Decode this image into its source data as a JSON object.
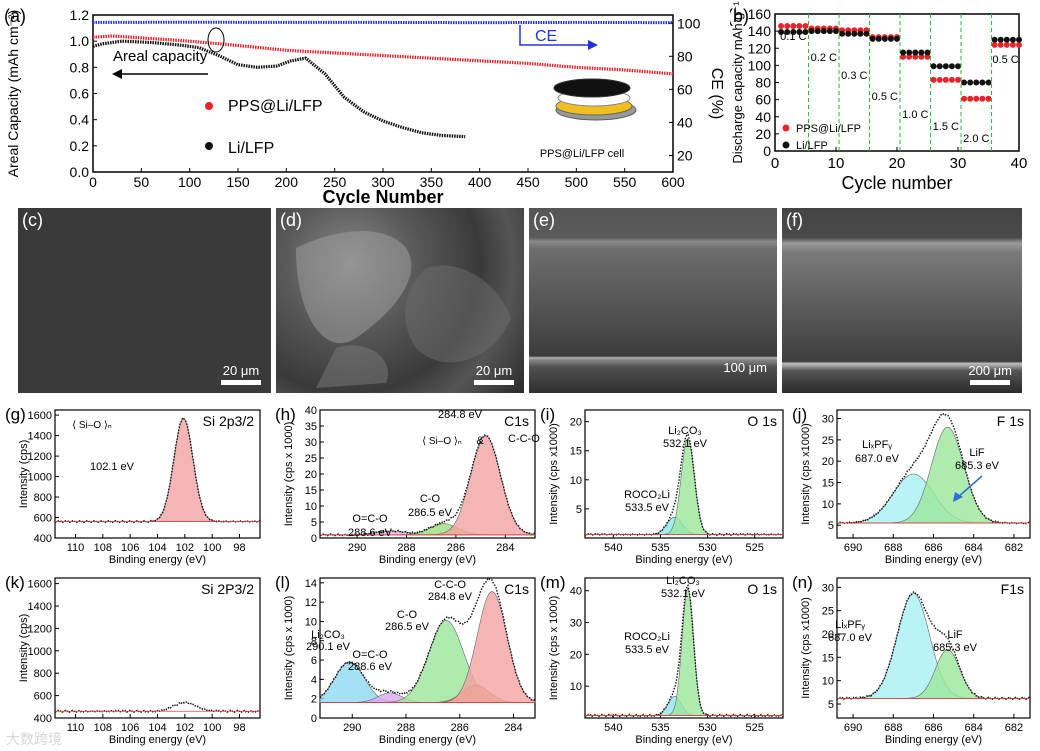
{
  "figure": {
    "watermark": "大数跨境"
  },
  "panel_a": {
    "label": "(a)",
    "chart_data": {
      "type": "line",
      "title": "",
      "xlabel": "Cycle Number",
      "ylabel": "Areal Capacity (mAh cm⁻²)",
      "y2label": "CE (%)",
      "xlim": [
        0,
        600
      ],
      "ylim": [
        0,
        1.2
      ],
      "y2lim": [
        10,
        105
      ],
      "xticks": [
        "0",
        "50",
        "100",
        "150",
        "200",
        "250",
        "300",
        "350",
        "400",
        "450",
        "500",
        "550",
        "600"
      ],
      "yticks": [
        "0.0",
        "0.2",
        "0.4",
        "0.6",
        "0.8",
        "1.0",
        "1.2"
      ],
      "y2ticks": [
        "20",
        "40",
        "60",
        "80",
        "100"
      ],
      "series": [
        {
          "name": "PPS@Li/LFP",
          "color": "#e8232a",
          "x": [
            0,
            20,
            40,
            60,
            80,
            100,
            130,
            160,
            200,
            250,
            300,
            350,
            400,
            450,
            500,
            550,
            600
          ],
          "y": [
            1.03,
            1.04,
            1.03,
            1.02,
            1.01,
            1.0,
            0.98,
            0.96,
            0.93,
            0.91,
            0.89,
            0.87,
            0.85,
            0.83,
            0.8,
            0.78,
            0.75
          ]
        },
        {
          "name": "Li/LFP",
          "color": "#111111",
          "x": [
            0,
            10,
            30,
            60,
            90,
            110,
            130,
            150,
            170,
            190,
            205,
            220,
            240,
            260,
            280,
            300,
            320,
            340,
            360,
            385
          ],
          "y": [
            0.96,
            0.98,
            1.0,
            0.99,
            0.97,
            0.95,
            0.89,
            0.82,
            0.8,
            0.81,
            0.85,
            0.87,
            0.75,
            0.57,
            0.46,
            0.39,
            0.34,
            0.3,
            0.28,
            0.27
          ]
        },
        {
          "name": "CE",
          "color": "#2233dd",
          "axis": "y2",
          "x": [
            0,
            100,
            200,
            300,
            400,
            500,
            600
          ],
          "y": [
            100.5,
            100.6,
            100.5,
            100.5,
            100.4,
            100.5,
            100.4
          ]
        }
      ],
      "annotations": [
        "Areal capacity",
        "CE"
      ],
      "legend": [
        "PPS@Li/LFP",
        "Li/LFP"
      ],
      "inset_label": "PPS@Li/LFP cell"
    }
  },
  "panel_b": {
    "label": "(b)",
    "chart_data": {
      "type": "scatter",
      "xlabel": "Cycle number",
      "ylabel": "Discharge capacity mAh g⁻¹",
      "xlim": [
        0,
        40
      ],
      "ylim": [
        0,
        160
      ],
      "xticks": [
        "0",
        "10",
        "20",
        "30",
        "40"
      ],
      "yticks": [
        "0",
        "20",
        "40",
        "60",
        "80",
        "100",
        "120",
        "140",
        "160"
      ],
      "rates": [
        {
          "label": "0.1 C",
          "start": 1,
          "end": 5,
          "pps": 146,
          "li": 139
        },
        {
          "label": "0.2 C",
          "start": 6,
          "end": 10,
          "pps": 143,
          "li": 140
        },
        {
          "label": "0.3 C",
          "start": 11,
          "end": 15,
          "pps": 141,
          "li": 137
        },
        {
          "label": "0.5 C",
          "start": 16,
          "end": 20,
          "pps": 133,
          "li": 131
        },
        {
          "label": "1.0 C",
          "start": 21,
          "end": 25,
          "pps": 110,
          "li": 115
        },
        {
          "label": "1.5 C",
          "start": 26,
          "end": 30,
          "pps": 83,
          "li": 99
        },
        {
          "label": "2.0 C",
          "start": 31,
          "end": 35,
          "pps": 61,
          "li": 80
        },
        {
          "label": "0.5 C",
          "start": 36,
          "end": 40,
          "pps": 124,
          "li": 130
        }
      ],
      "series_names": [
        "PPS@Li/LFP",
        "Li/LFP"
      ],
      "colors": {
        "pps": "#e8232a",
        "li": "#111111",
        "guide": "#22bb22"
      }
    }
  },
  "panel_c": {
    "label": "(c)",
    "scale": "20 μm"
  },
  "panel_d": {
    "label": "(d)",
    "scale": "20 μm"
  },
  "panel_e": {
    "label": "(e)",
    "scale": "100 μm"
  },
  "panel_f": {
    "label": "(f)",
    "scale": "200 μm"
  },
  "xps": [
    {
      "id": "g",
      "label": "(g)",
      "title": "Si 2p3/2",
      "xlabel": "Binding energy (eV)",
      "ylabel": "Intensity (cps)",
      "xticks": [
        "110",
        "108",
        "106",
        "104",
        "102",
        "100",
        "98"
      ],
      "yticks": [
        "400",
        "600",
        "800",
        "1000",
        "1200",
        "1400",
        "1600"
      ],
      "xlim": [
        111.5,
        96.5
      ],
      "ylim": [
        400,
        1650
      ],
      "baseline": 560,
      "peaks": [
        {
          "center": 102.1,
          "height": 1010,
          "width": 0.7,
          "color": "#f4a3a3",
          "label": "102.1 eV"
        }
      ],
      "annotations": [
        "102.1 eV"
      ]
    },
    {
      "id": "h",
      "label": "(h)",
      "title": "C1s",
      "xlabel": "Binding energy (eV)",
      "ylabel": "Intensity (cps x 1000)",
      "xticks": [
        "290",
        "288",
        "286",
        "284"
      ],
      "yticks": [
        "0",
        "5",
        "10",
        "15",
        "20",
        "25",
        "30",
        "35",
        "40"
      ],
      "xlim": [
        291.5,
        282.8
      ],
      "ylim": [
        0,
        40
      ],
      "baseline": 1,
      "peaks": [
        {
          "center": 288.6,
          "height": 1.2,
          "width": 0.6,
          "color": "#e4b0f0",
          "label": "O=C-O"
        },
        {
          "center": 286.5,
          "height": 3.5,
          "width": 0.55,
          "color": "#9adf7a",
          "label": "C-O"
        },
        {
          "center": 284.8,
          "height": 31,
          "width": 0.6,
          "color": "#f4a3a3",
          "label": "C-C-O"
        }
      ],
      "annotations": [
        "284.8 eV",
        "C-C-O",
        "&",
        "C-O",
        "286.5 eV",
        "O=C-O",
        "288.6 eV"
      ]
    },
    {
      "id": "i",
      "label": "(i)",
      "title": "O 1s",
      "xlabel": "Binding energy (eV)",
      "ylabel": "Intensity (cps x1000)",
      "xticks": [
        "540",
        "535",
        "530",
        "525"
      ],
      "yticks": [
        "5",
        "10",
        "15",
        "20"
      ],
      "xlim": [
        543,
        522
      ],
      "ylim": [
        0,
        22
      ],
      "baseline": 0.6,
      "peaks": [
        {
          "center": 533.5,
          "height": 3,
          "width": 0.8,
          "color": "#8fe6ef",
          "label": "ROCO2Li"
        },
        {
          "center": 532.1,
          "height": 16.5,
          "width": 0.7,
          "color": "#9be69b",
          "label": "Li2CO3"
        }
      ],
      "annotations": [
        "Li₂CO₃",
        "532.1 eV",
        "ROCO₂Li",
        "533.5 eV"
      ]
    },
    {
      "id": "j",
      "label": "(j)",
      "title": "F 1s",
      "xlabel": "Binding energy (eV)",
      "ylabel": "Intensity (cps x1000)",
      "xticks": [
        "690",
        "688",
        "686",
        "684",
        "682"
      ],
      "yticks": [
        "5",
        "10",
        "15",
        "20",
        "25",
        "30"
      ],
      "xlim": [
        690.8,
        681.2
      ],
      "ylim": [
        2,
        32
      ],
      "baseline": 5.5,
      "peaks": [
        {
          "center": 687.0,
          "height": 11.5,
          "width": 1.0,
          "color": "#a8f0f4",
          "label": "LixPFy"
        },
        {
          "center": 685.3,
          "height": 22.5,
          "width": 0.8,
          "color": "#9be69b",
          "label": "LiF"
        }
      ],
      "annotations": [
        "LiₓPFᵧ",
        "687.0 eV",
        "LiF",
        "685.3 eV"
      ]
    },
    {
      "id": "k",
      "label": "(k)",
      "title": "Si 2P3/2",
      "xlabel": "Binding energy (eV)",
      "ylabel": "Intensity (cps)",
      "xticks": [
        "110",
        "108",
        "106",
        "104",
        "102",
        "100",
        "98"
      ],
      "yticks": [
        "400",
        "600",
        "800",
        "1000",
        "1200",
        "1400",
        "1600"
      ],
      "xlim": [
        111.5,
        96.5
      ],
      "ylim": [
        400,
        1650
      ],
      "baseline": 460,
      "peaks": [
        {
          "center": 102.0,
          "height": 80,
          "width": 0.8,
          "color": "none",
          "label": ""
        }
      ],
      "annotations": []
    },
    {
      "id": "l",
      "label": "(l)",
      "title": "C1s",
      "xlabel": "Binding energy (eV)",
      "ylabel": "Intensity (cps x 1000)",
      "xticks": [
        "290",
        "288",
        "286",
        "284"
      ],
      "yticks": [
        "0",
        "2",
        "4",
        "6",
        "8",
        "10",
        "12",
        "14"
      ],
      "xlim": [
        291.2,
        283.2
      ],
      "ylim": [
        0,
        14.5
      ],
      "baseline": 1.6,
      "peaks": [
        {
          "center": 290.1,
          "height": 4.2,
          "width": 0.55,
          "color": "#8fd9f3",
          "label": "Li2CO3"
        },
        {
          "center": 288.6,
          "height": 1.0,
          "width": 0.45,
          "color": "#d9a8f0",
          "label": "O=C-O"
        },
        {
          "center": 286.5,
          "height": 8.5,
          "width": 0.65,
          "color": "#9be69b",
          "label": "C-O"
        },
        {
          "center": 285.4,
          "height": 1.8,
          "width": 0.5,
          "color": "#d6a060",
          "label": ""
        },
        {
          "center": 284.8,
          "height": 11.5,
          "width": 0.55,
          "color": "#f4a3a3",
          "label": "C-C-O"
        }
      ],
      "annotations": [
        "Li₂CO₃",
        "290.1 eV",
        "O=C-O",
        "288.6 eV",
        "C-O",
        "286.5 eV",
        "C-C-O",
        "284.8 eV"
      ]
    },
    {
      "id": "m",
      "label": "(m)",
      "title": "O 1s",
      "xlabel": "Binding energy (eV)",
      "ylabel": "Intensity (cps x 1000)",
      "xticks": [
        "540",
        "535",
        "530",
        "525"
      ],
      "yticks": [
        "10",
        "20",
        "30",
        "40"
      ],
      "xlim": [
        543,
        522
      ],
      "ylim": [
        0,
        44
      ],
      "baseline": 0.8,
      "peaks": [
        {
          "center": 533.5,
          "height": 6,
          "width": 0.7,
          "color": "#8fe6ef",
          "label": "ROCO2Li"
        },
        {
          "center": 532.1,
          "height": 40,
          "width": 0.6,
          "color": "#9be69b",
          "label": "Li2CO3"
        }
      ],
      "annotations": [
        "Li₂CO₃",
        "532.1 eV",
        "ROCO₂Li",
        "533.5 eV"
      ]
    },
    {
      "id": "n",
      "label": "(n)",
      "title": "F1s",
      "xlabel": "Binding energy (eV)",
      "ylabel": "Intensity (cps x1000)",
      "xticks": [
        "690",
        "688",
        "686",
        "684",
        "682"
      ],
      "yticks": [
        "5",
        "10",
        "15",
        "20",
        "25",
        "30"
      ],
      "xlim": [
        690.8,
        681.2
      ],
      "ylim": [
        2,
        32
      ],
      "baseline": 6.2,
      "peaks": [
        {
          "center": 687.0,
          "height": 22.5,
          "width": 0.8,
          "color": "#a8f0f4",
          "label": "LixPFy"
        },
        {
          "center": 685.3,
          "height": 10.5,
          "width": 0.6,
          "color": "#9be69b",
          "label": "LiF"
        }
      ],
      "annotations": [
        "LiₓPFᵧ",
        "687.0 eV",
        "LiF",
        "685.3 eV"
      ]
    }
  ]
}
